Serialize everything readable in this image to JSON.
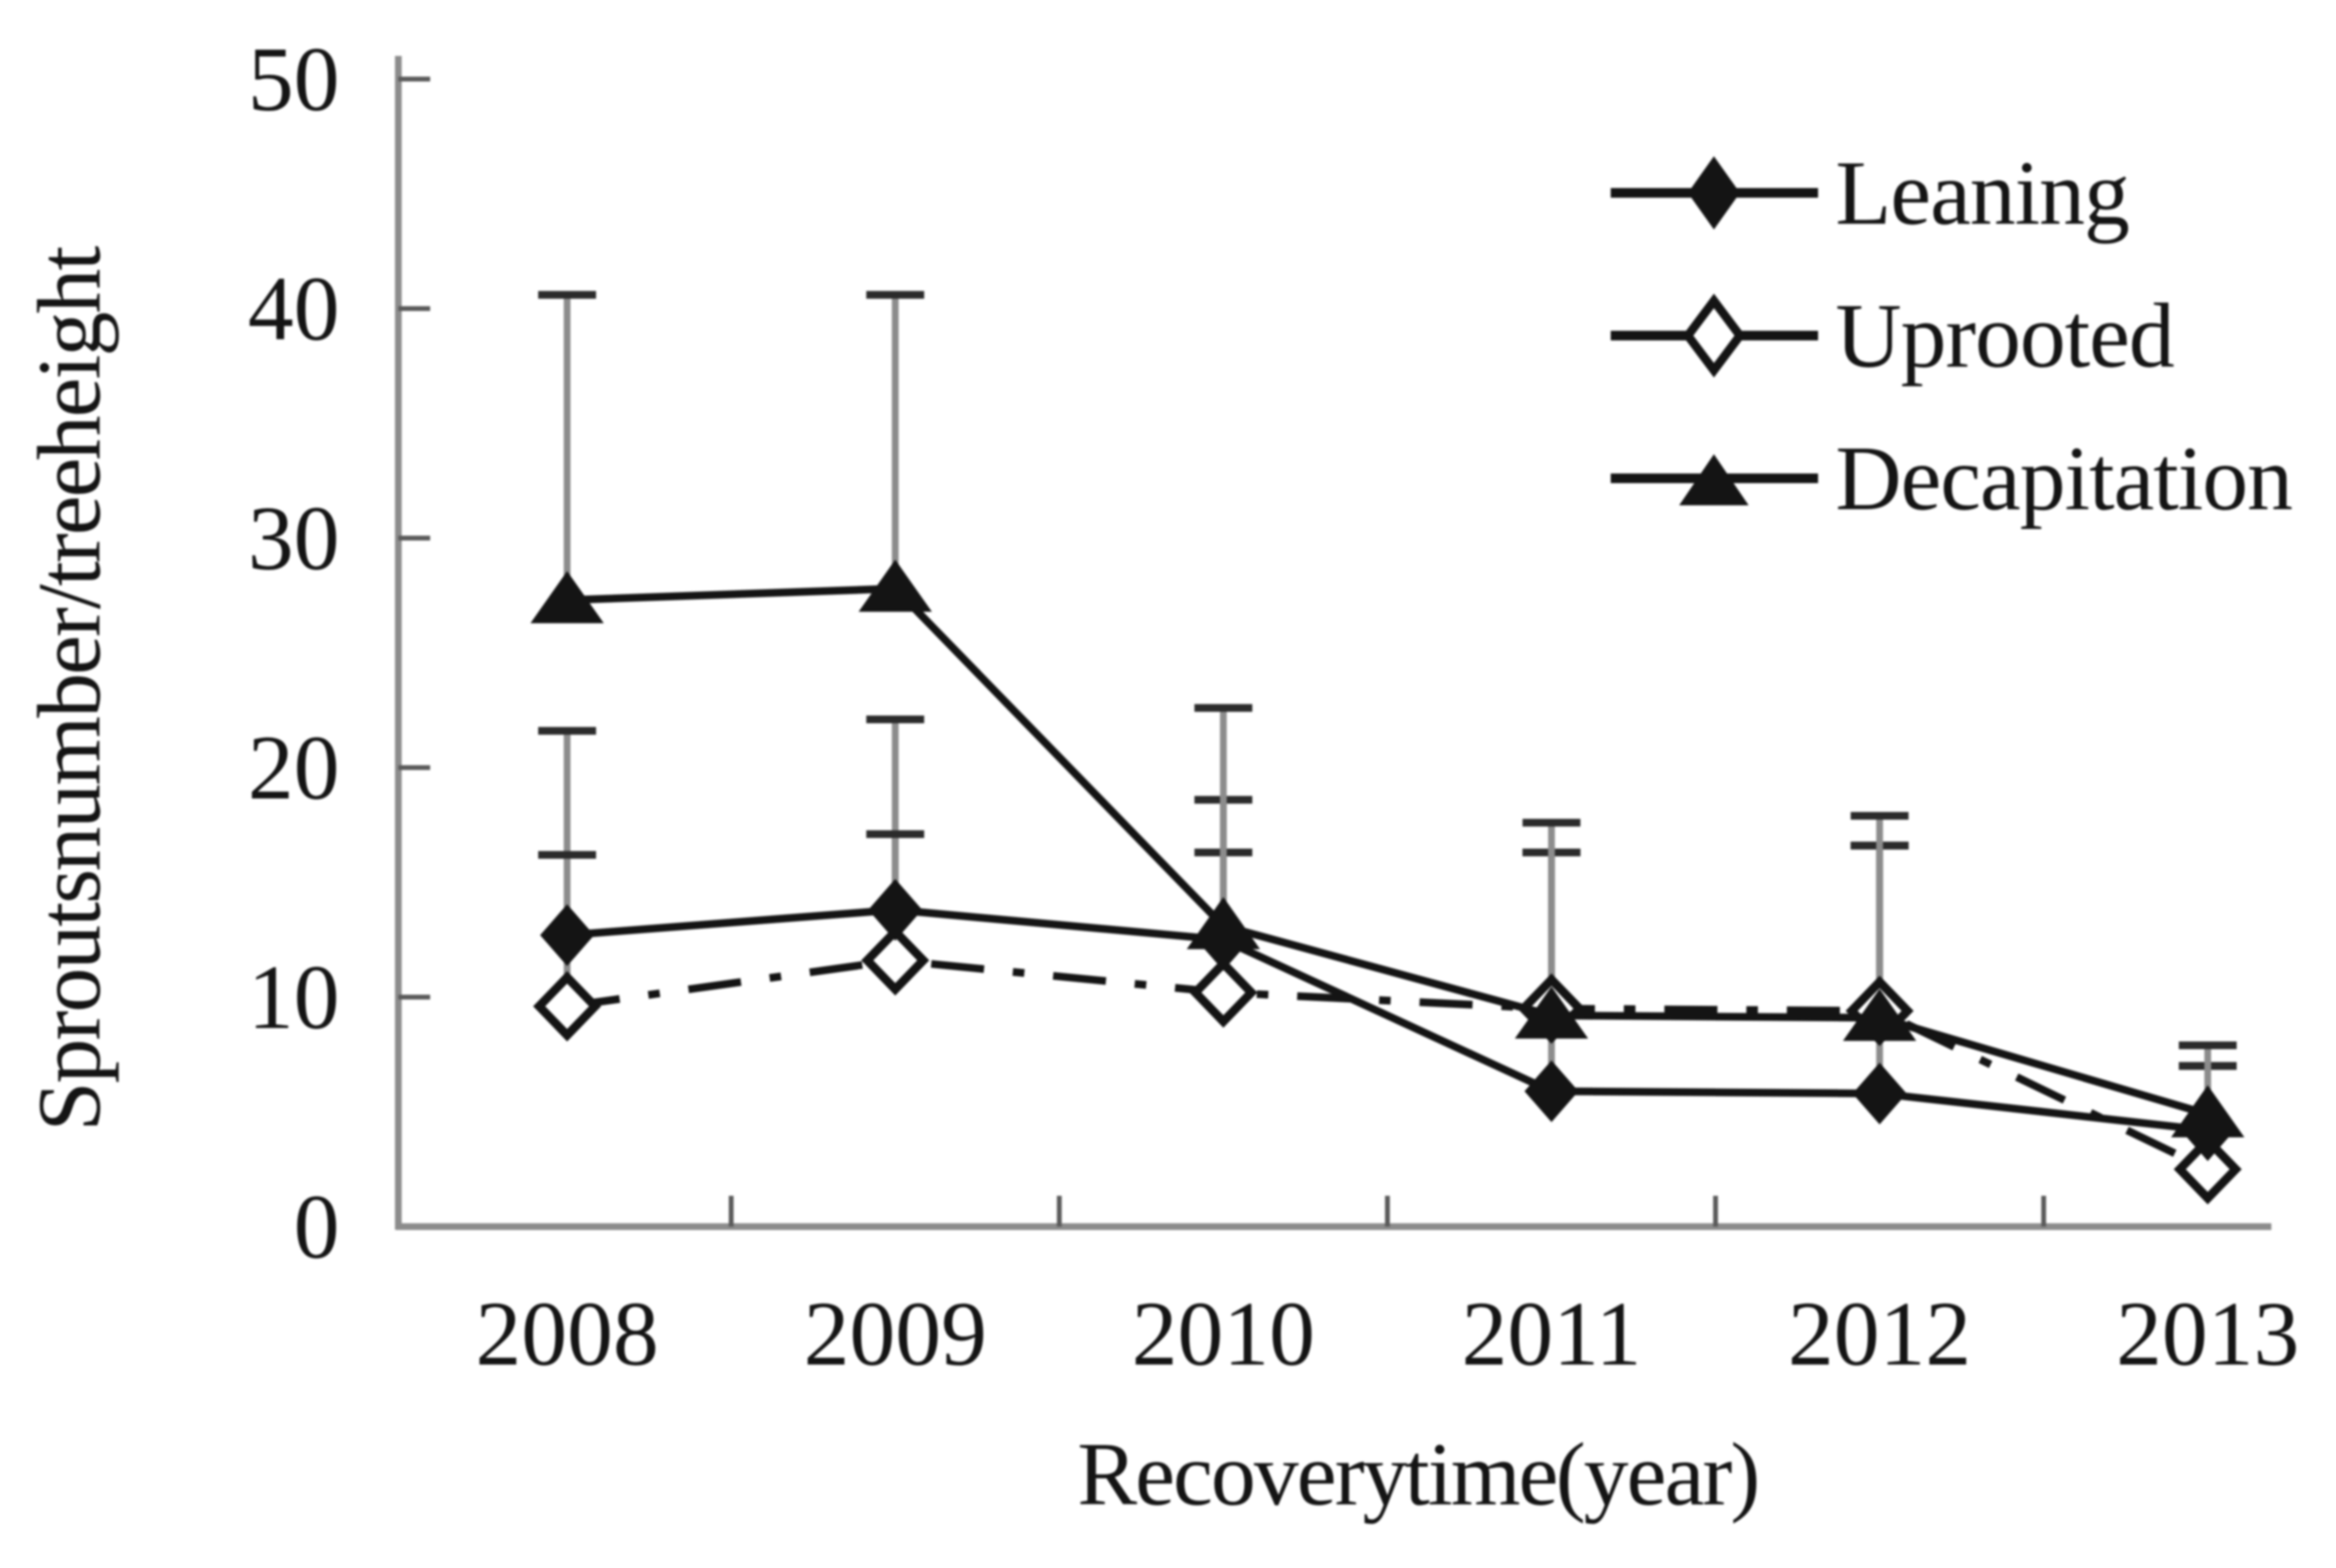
{
  "figure_title": "",
  "colors": {
    "background": "#ffffff",
    "ink": "#141414",
    "axis_line": "#8c8c8c",
    "tick_mark": "#5a5a5a",
    "error_bar_line": "#8c8c8c",
    "error_bar_cap": "#2b2b2b"
  },
  "legend": {
    "position": "top-right",
    "items": [
      {
        "label": "Leaning",
        "marker": "filled-diamond-icon",
        "line": "solid"
      },
      {
        "label": "Uprooted",
        "marker": "open-diamond-icon",
        "line": "dash-dot"
      },
      {
        "label": "Decapitation",
        "marker": "filled-triangle-icon",
        "line": "solid"
      }
    ]
  },
  "chart_data": {
    "type": "line",
    "title": "",
    "xlabel": "Recovery time (year)",
    "ylabel": "Sprouts number/tree height",
    "categories": [
      "2008",
      "2009",
      "2010",
      "2011",
      "2012",
      "2013"
    ],
    "y_ticks": [
      "0",
      "10",
      "20",
      "30",
      "40",
      "50"
    ],
    "ylim": [
      0,
      50
    ],
    "y_tick_step": 10,
    "grid": false,
    "legend_position": "top-right",
    "error_bars": "upper-only",
    "series": [
      {
        "name": "Leaning",
        "marker": "filled-diamond",
        "line_style": "solid",
        "values": [
          12.7,
          13.8,
          12.5,
          5.9,
          5.8,
          4.2
        ],
        "error_bar_top": [
          21.6,
          22.1,
          18.6,
          16.3,
          16.6,
          7.0
        ]
      },
      {
        "name": "Uprooted",
        "marker": "open-diamond",
        "line_style": "dash-dot",
        "values": [
          9.6,
          11.6,
          10.2,
          9.5,
          9.4,
          2.5
        ],
        "error_bar_top": [
          16.2,
          17.1,
          16.3,
          16.3,
          16.6,
          7.0
        ]
      },
      {
        "name": "Decapitation",
        "marker": "filled-triangle",
        "line_style": "solid",
        "values": [
          27.3,
          27.8,
          13.1,
          9.2,
          9.1,
          4.9
        ],
        "error_bar_top": [
          40.6,
          40.6,
          22.6,
          17.6,
          17.9,
          7.9
        ]
      }
    ]
  }
}
